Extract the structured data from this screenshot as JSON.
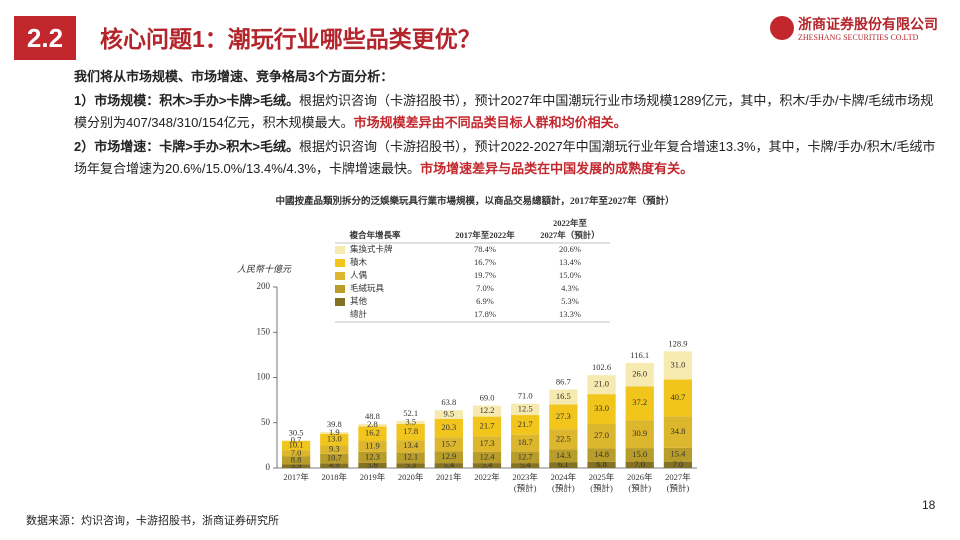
{
  "slide": {
    "badge": "2.2",
    "title": "核心问题1：潮玩行业哪些品类更优？",
    "logo_cn": "浙商证券股份有限公司",
    "logo_en": "ZHESHANG SECURITIES CO.LTD",
    "intro": "我们将从市场规模、市场增速、竞争格局3个方面分析：",
    "points": [
      {
        "lead": "1）市场规模：积木>手办>卡牌>毛绒。",
        "body": "根据灼识咨询（卡游招股书），预计2027年中国潮玩行业市场规模1289亿元，其中，积木/手办/卡牌/毛绒市场规模分别为407/348/310/154亿元，积木规模最大。",
        "highlight": "市场规模差异由不同品类目标人群和均价相关。"
      },
      {
        "lead": "2）市场增速：卡牌>手办>积木>毛绒。",
        "body": "根据灼识咨询（卡游招股书），预计2022-2027年中国潮玩行业年复合增速13.3%，其中，卡牌/手办/积木/毛绒市场年复合增速为20.6%/15.0%/13.4%/4.3%，卡牌增速最快。",
        "highlight": "市场增速差异与品类在中国发展的成熟度有关。"
      }
    ],
    "source": "数据来源：灼识咨询，卡游招股书，浙商证券研究所",
    "page": "18"
  },
  "chart_data": {
    "type": "stacked_bar",
    "title": "中國按產品類別拆分的泛娛樂玩具行業市場規模，以商品交易總額計，2017年至2027年（預計）",
    "y_label": "人民幣十億元",
    "categories": [
      "2017年",
      "2018年",
      "2019年",
      "2020年",
      "2021年",
      "2022年",
      "2023年\n(預計)",
      "2024年\n(預計)",
      "2025年\n(預計)",
      "2026年\n(預計)",
      "2027年\n(預計)"
    ],
    "series": [
      {
        "name": "集換式卡牌",
        "color": "#f6eab0",
        "values": [
          0.7,
          1.9,
          2.8,
          3.5,
          9.5,
          12.2,
          12.5,
          16.5,
          21.0,
          26.0,
          31.0
        ],
        "value_labels": [
          "0.7",
          "1.9",
          "2.8",
          "3.5",
          "9.5",
          "12.2",
          "12.5",
          "16.5",
          "21.0",
          "26.0",
          "31.0"
        ]
      },
      {
        "name": "積木",
        "color": "#f1c51c",
        "values": [
          10.1,
          13.0,
          16.2,
          17.8,
          20.3,
          21.7,
          21.7,
          27.3,
          33.0,
          37.2,
          40.7
        ],
        "value_labels": [
          "10.1",
          "13.0",
          "16.2",
          "17.8",
          "20.3",
          "21.7",
          "21.7",
          "27.3",
          "33.0",
          "37.2",
          "40.7"
        ]
      },
      {
        "name": "人偶",
        "color": "#dcb62c",
        "values": [
          7.0,
          9.3,
          11.9,
          13.4,
          15.7,
          17.3,
          18.7,
          22.5,
          27.0,
          30.9,
          34.8
        ],
        "value_labels": [
          "7.0",
          "9.3",
          "11.9",
          "13.4",
          "15.7",
          "17.3",
          "18.7",
          "22.5",
          "27.0",
          "30.9",
          "34.8"
        ]
      },
      {
        "name": "毛絨玩具",
        "color": "#b89d2b",
        "values": [
          8.8,
          10.7,
          12.3,
          12.1,
          12.9,
          12.4,
          12.7,
          14.3,
          14.8,
          15.0,
          15.4
        ],
        "value_labels": [
          "8.8",
          "10.7",
          "12.3",
          "12.1",
          "12.9",
          "12.4",
          "12.7",
          "14.3",
          "14.8",
          "15.0",
          "15.4"
        ]
      },
      {
        "name": "其他",
        "color": "#837124",
        "values": [
          3.9,
          4.9,
          5.6,
          5.3,
          5.4,
          5.4,
          5.4,
          6.1,
          6.8,
          7.0,
          7.0
        ],
        "value_labels": [
          "3.9",
          "4.9",
          "5.6",
          "5.3",
          "5.4",
          "5.4",
          "5.4",
          "6.1",
          "6.8",
          "7.0",
          "7.0"
        ]
      }
    ],
    "totals": [
      30.5,
      39.8,
      48.8,
      52.1,
      63.8,
      69.0,
      71.0,
      86.7,
      102.6,
      116.1,
      128.9
    ],
    "total_labels": [
      "30.5",
      "39.8",
      "48.8",
      "52.1",
      "63.8",
      "69.0",
      "71.0",
      "86.7",
      "102.6",
      "116.1",
      "128.9"
    ],
    "ylim": [
      0,
      200
    ],
    "yticks": [
      0,
      50,
      100,
      150,
      200
    ],
    "legend_table": {
      "header": [
        "複合年增長率",
        "2017年至2022年",
        "2022年至\n2027年（預計）"
      ],
      "rows": [
        [
          "78.4%",
          "20.6%"
        ],
        [
          "16.7%",
          "13.4%"
        ],
        [
          "19.7%",
          "15.0%"
        ],
        [
          "7.0%",
          "4.3%"
        ],
        [
          "6.9%",
          "5.3%"
        ]
      ],
      "total_label": "總計",
      "total_row": [
        "17.8%",
        "13.3%"
      ]
    }
  }
}
